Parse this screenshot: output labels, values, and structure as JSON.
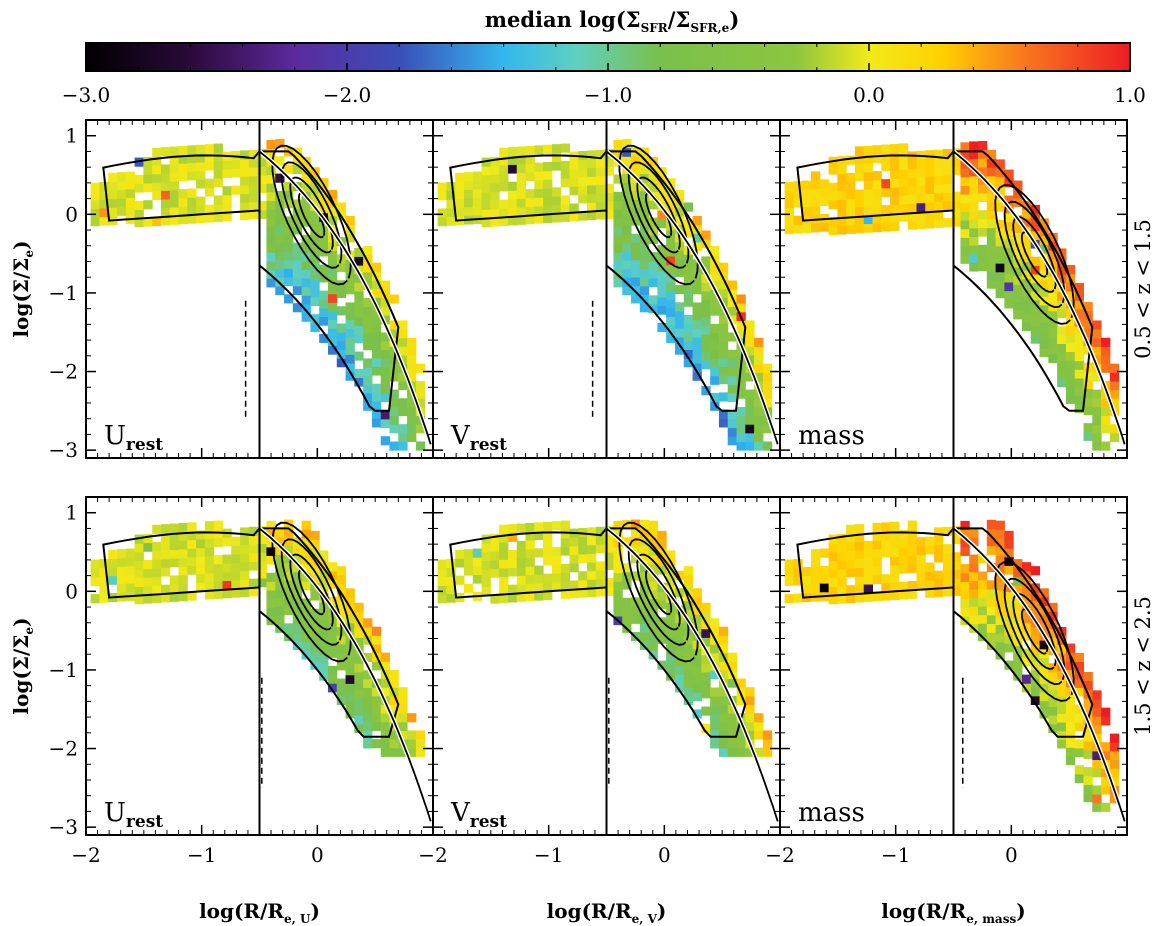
{
  "colorbar": {
    "title_main": "median log(Σ",
    "title_sub1": "SFR",
    "title_mid": "/Σ",
    "title_sub2": "SFR,e",
    "title_end": ")",
    "min": -3.0,
    "max": 1.0,
    "ticks": [
      "−3.0",
      "−2.0",
      "−1.0",
      "0.0",
      "1.0"
    ],
    "tick_values": [
      -3,
      -2,
      -1,
      0,
      1
    ]
  },
  "chart_data": {
    "type": "heatmap",
    "xlim": [
      -2,
      1
    ],
    "ylim": [
      -3.1,
      1.2
    ],
    "x_ticks": [
      -2,
      -1,
      0
    ],
    "x_tick_labels": [
      "−2",
      "−1",
      "0"
    ],
    "y_ticks": [
      -3,
      -2,
      -1,
      0,
      1
    ],
    "y_tick_labels": [
      "−3",
      "−2",
      "−1",
      "0",
      "1"
    ],
    "ylabel_main": "log(Σ/Σ",
    "ylabel_sub": "e",
    "ylabel_end": ")",
    "xlabels": [
      {
        "main": "log(R/R",
        "sub": "e, U",
        "end": ")"
      },
      {
        "main": "log(R/R",
        "sub": "e, V",
        "end": ")"
      },
      {
        "main": "log(R/R",
        "sub": "e, mass",
        "end": ")"
      }
    ],
    "rows": [
      {
        "label": "0.5 < z < 1.5",
        "vertical_line_x": -0.5,
        "dashed_line_x": [
          -0.62,
          -0.62,
          -0.5
        ],
        "dashed_y": [
          -1.1,
          -2.6
        ]
      },
      {
        "label": "1.5 < z < 2.5",
        "vertical_line_x": -0.5,
        "dashed_line_x": [
          -0.48,
          -0.48,
          -0.42
        ],
        "dashed_y": [
          -1.1,
          -2.5
        ]
      }
    ],
    "columns": [
      {
        "panel_label": "U",
        "panel_label_sub": "rest"
      },
      {
        "panel_label": "V",
        "panel_label_sub": "rest"
      },
      {
        "panel_label": "mass",
        "panel_label_sub": ""
      }
    ]
  }
}
